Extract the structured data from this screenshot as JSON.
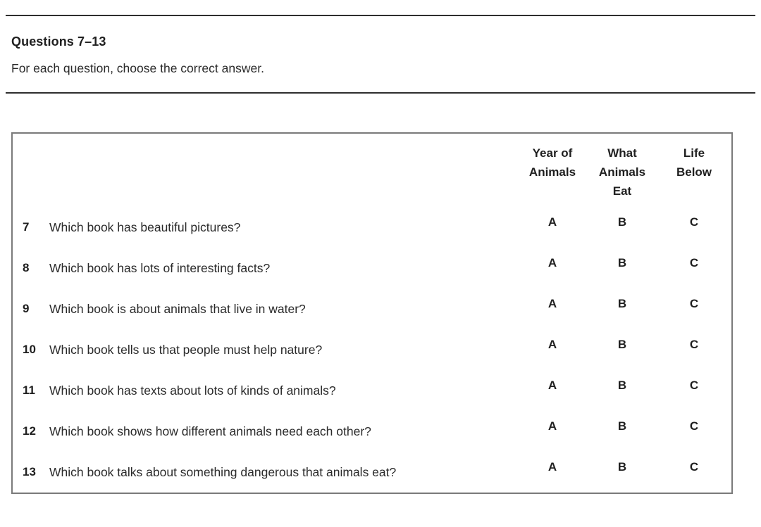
{
  "header": {
    "title": "Questions 7–13",
    "instruction": "For each question, choose the correct answer."
  },
  "table": {
    "column_headers": [
      "Year of\nAnimals",
      "What\nAnimals\nEat",
      "Life\nBelow"
    ],
    "rows": [
      {
        "number": "7",
        "question": "Which book has beautiful pictures?",
        "options": [
          "A",
          "B",
          "C"
        ]
      },
      {
        "number": "8",
        "question": "Which book has lots of interesting facts?",
        "options": [
          "A",
          "B",
          "C"
        ]
      },
      {
        "number": "9",
        "question": "Which book is about animals that live in water?",
        "options": [
          "A",
          "B",
          "C"
        ]
      },
      {
        "number": "10",
        "question": "Which book tells us that people must help nature?",
        "options": [
          "A",
          "B",
          "C"
        ]
      },
      {
        "number": "11",
        "question": "Which book has texts about lots of kinds of animals?",
        "options": [
          "A",
          "B",
          "C"
        ]
      },
      {
        "number": "12",
        "question": "Which book shows how different animals need each other?",
        "options": [
          "A",
          "B",
          "C"
        ]
      },
      {
        "number": "13",
        "question": "Which book talks about something dangerous that animals eat?",
        "options": [
          "A",
          "B",
          "C"
        ]
      }
    ]
  },
  "colors": {
    "text": "#1f1f1f",
    "rule": "#2e2e2e",
    "table_border": "#7a7a7a"
  }
}
